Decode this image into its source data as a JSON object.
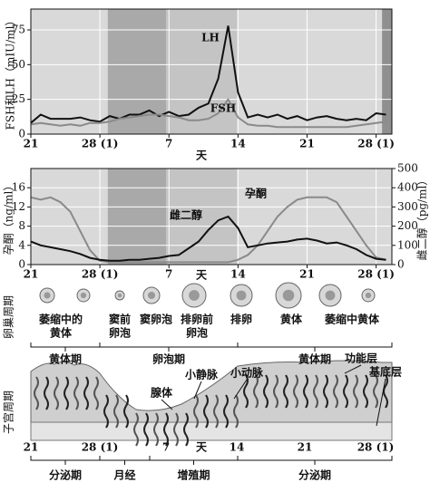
{
  "chart_data": [
    {
      "type": "line",
      "ylabel": "FSH和LH（mIU/ml）",
      "xlabel": "天",
      "x": [
        0,
        1,
        2,
        3,
        4,
        5,
        6,
        7,
        8,
        9,
        10,
        11,
        12,
        13,
        14,
        15,
        16,
        17,
        18,
        19,
        20,
        21,
        22,
        23,
        24,
        25,
        26,
        27,
        28,
        29,
        30,
        31,
        32,
        33,
        34,
        35,
        36
      ],
      "xlim": [
        0,
        36.6
      ],
      "xticks": [
        {
          "value": 0,
          "label": "21"
        },
        {
          "value": 7,
          "label": "28 (1)"
        },
        {
          "value": 14,
          "label": "7"
        },
        {
          "value": 21,
          "label": "14"
        },
        {
          "value": 28,
          "label": "21"
        },
        {
          "value": 35,
          "label": "28 (1)"
        }
      ],
      "ylim": [
        0,
        90
      ],
      "yticks": [
        0,
        25,
        50,
        75
      ],
      "grid": true,
      "bands": [
        {
          "from": 7.8,
          "to": 13.7,
          "color": "#a9a9a9"
        },
        {
          "from": 13.7,
          "to": 20.9,
          "color": "#c4c4c4"
        },
        {
          "from": 35.6,
          "to": 36.6,
          "color": "#8f8f8f"
        }
      ],
      "series": [
        {
          "name": "LH",
          "color": "#111111",
          "values": [
            8,
            14,
            11,
            11,
            11,
            12,
            10,
            9,
            13,
            11,
            14,
            14,
            17,
            13,
            16,
            13,
            14,
            19,
            22,
            40,
            78,
            30,
            12,
            14,
            12,
            14,
            11,
            13,
            10,
            12,
            13,
            11,
            10,
            11,
            10,
            15,
            14
          ]
        },
        {
          "name": "FSH",
          "color": "#8a8a8a",
          "values": [
            7,
            8,
            7,
            6,
            7,
            6,
            8,
            8,
            9,
            11,
            12,
            13,
            14,
            14,
            13,
            12,
            10,
            10,
            11,
            15,
            25,
            12,
            7,
            6,
            6,
            5,
            5,
            5,
            5,
            5,
            5,
            5,
            5,
            6,
            7,
            8,
            9
          ]
        }
      ]
    },
    {
      "type": "line",
      "ylabel": "孕酮（ng/ml）",
      "y2label": "雌二醇（pg/ml）",
      "xlabel": "天",
      "x": [
        0,
        1,
        2,
        3,
        4,
        5,
        6,
        7,
        8,
        9,
        10,
        11,
        12,
        13,
        14,
        15,
        16,
        17,
        18,
        19,
        20,
        21,
        22,
        23,
        24,
        25,
        26,
        27,
        28,
        29,
        30,
        31,
        32,
        33,
        34,
        35,
        36
      ],
      "xlim": [
        0,
        36.6
      ],
      "xticks": [
        {
          "value": 0,
          "label": "21"
        },
        {
          "value": 7,
          "label": "28 (1)"
        },
        {
          "value": 14,
          "label": "7"
        },
        {
          "value": 21,
          "label": "14"
        },
        {
          "value": 28,
          "label": "21"
        },
        {
          "value": 35,
          "label": "28 (1)"
        }
      ],
      "ylim": [
        0,
        20
      ],
      "yticks": [
        0,
        4,
        8,
        12,
        16
      ],
      "y2lim": [
        0,
        500
      ],
      "y2ticks": [
        0,
        100,
        200,
        300,
        400,
        500
      ],
      "grid": true,
      "bands": [
        {
          "from": 7.8,
          "to": 13.7,
          "color": "#a9a9a9"
        },
        {
          "from": 13.7,
          "to": 20.9,
          "color": "#c4c4c4"
        }
      ],
      "series": [
        {
          "name": "孕酮",
          "color": "#8a8a8a",
          "values": [
            14,
            13.5,
            14,
            13,
            11,
            7,
            3,
            0.8,
            0.5,
            0.5,
            0.5,
            0.5,
            0.5,
            0.5,
            0.5,
            0.5,
            0.5,
            0.5,
            0.5,
            0.5,
            0.5,
            1,
            2,
            4,
            7,
            10,
            12,
            13.5,
            14,
            14,
            14,
            13,
            10,
            7,
            4,
            1.5,
            1
          ]
        },
        {
          "name": "雌二醇",
          "color": "#111111",
          "axis": "y2",
          "values": [
            120,
            100,
            90,
            80,
            70,
            55,
            35,
            25,
            20,
            20,
            25,
            25,
            30,
            35,
            45,
            50,
            85,
            120,
            180,
            230,
            250,
            190,
            90,
            100,
            110,
            115,
            120,
            130,
            135,
            125,
            110,
            115,
            100,
            80,
            50,
            30,
            25
          ]
        }
      ]
    }
  ],
  "ovary": {
    "title": "卵巢周期",
    "stages": [
      [
        "萎缩中的",
        "黄体"
      ],
      [
        "窦前",
        "卵泡"
      ],
      [
        "窦卵泡"
      ],
      [
        "排卵前",
        "卵泡"
      ],
      [
        "排卵"
      ],
      [
        "黄体"
      ],
      [
        "萎缩中黄体"
      ]
    ],
    "phases": [
      "黄体期",
      "卵泡期",
      "黄体期"
    ]
  },
  "uterus": {
    "title": "子宫周期",
    "labels": [
      "腺体",
      "小静脉",
      "小动脉",
      "功能层",
      "基底层"
    ],
    "day_ticks": [
      "21",
      "28 (1)",
      "7",
      "天",
      "14",
      "21",
      "28 (1)"
    ],
    "phases": [
      "分泌期",
      "月经",
      "增殖期",
      "分泌期"
    ]
  }
}
